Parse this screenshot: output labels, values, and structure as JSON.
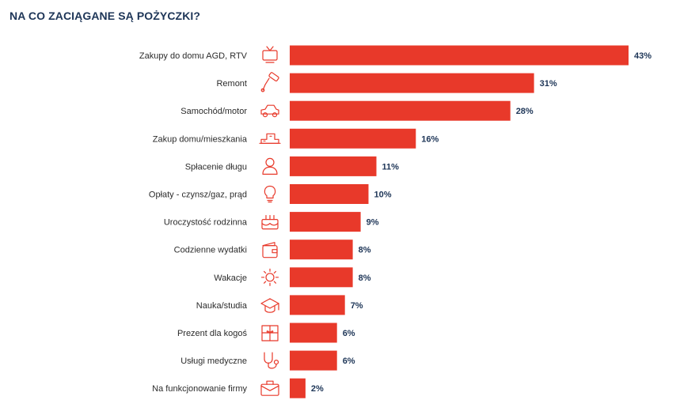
{
  "chart_data": {
    "type": "bar",
    "orientation": "horizontal",
    "title": "NA CO ZACIĄGANE SĄ POŻYCZKI?",
    "categories": [
      "Zakupy do domu AGD, RTV",
      "Remont",
      "Samochód/motor",
      "Zakup domu/mieszkania",
      "Spłacenie długu",
      "Opłaty - czynsz/gaz, prąd",
      "Uroczystość rodzinna",
      "Codzienne wydatki",
      "Wakacje",
      "Nauka/studia",
      "Prezent dla kogoś",
      "Usługi medyczne",
      "Na funkcjonowanie firmy"
    ],
    "values": [
      43,
      31,
      28,
      16,
      11,
      10,
      9,
      8,
      8,
      7,
      6,
      6,
      2
    ],
    "value_labels": [
      "43%",
      "31%",
      "28%",
      "16%",
      "11%",
      "10%",
      "9%",
      "8%",
      "8%",
      "7%",
      "6%",
      "6%",
      "2%"
    ],
    "icons": [
      "tv-icon",
      "paint-roller-icon",
      "car-icon",
      "house-icon",
      "person-icon",
      "light-bulb-icon",
      "cake-icon",
      "wallet-icon",
      "sun-icon",
      "graduation-cap-icon",
      "gift-icon",
      "stethoscope-icon",
      "briefcase-icon"
    ],
    "xlim": [
      0,
      43
    ],
    "xlabel": "",
    "ylabel": "",
    "grid": false,
    "legend": false
  },
  "colors": {
    "bar": "#e8392a",
    "title": "#1d3557",
    "value_text": "#1d3557",
    "label_text": "#2b2b2b",
    "icon": "#e8392a"
  }
}
